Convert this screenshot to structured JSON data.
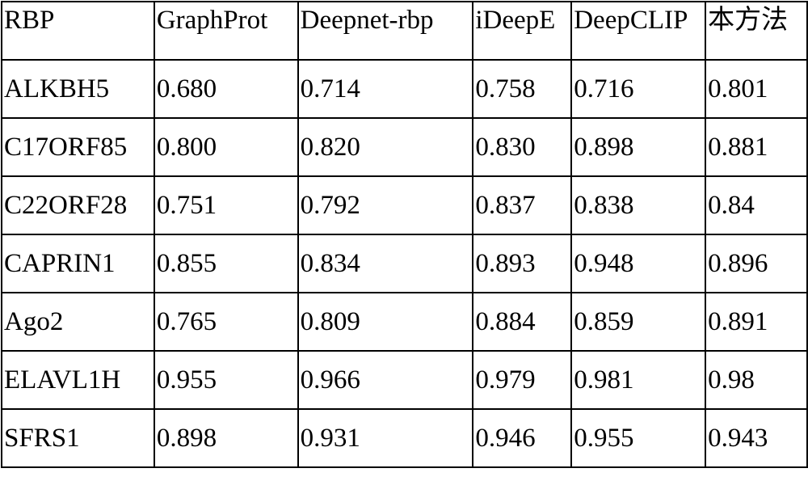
{
  "table": {
    "header": [
      "RBP",
      "GraphProt",
      "Deepnet-rbp",
      "iDeepE",
      "DeepCLIP",
      "本方法"
    ],
    "rows": [
      [
        "ALKBH5",
        "0.680",
        "0.714",
        "0.758",
        "0.716",
        "0.801"
      ],
      [
        "C17ORF85",
        "0.800",
        "0.820",
        "0.830",
        "0.898",
        "0.881"
      ],
      [
        "C22ORF28",
        "0.751",
        "0.792",
        "0.837",
        "0.838",
        "0.84"
      ],
      [
        "CAPRIN1",
        "0.855",
        "0.834",
        "0.893",
        "0.948",
        "0.896"
      ],
      [
        "Ago2",
        "0.765",
        "0.809",
        "0.884",
        "0.859",
        "0.891"
      ],
      [
        "ELAVL1H",
        "0.955",
        "0.966",
        "0.979",
        "0.981",
        "0.98"
      ],
      [
        "SFRS1",
        "0.898",
        "0.931",
        "0.946",
        "0.955",
        "0.943"
      ]
    ]
  }
}
